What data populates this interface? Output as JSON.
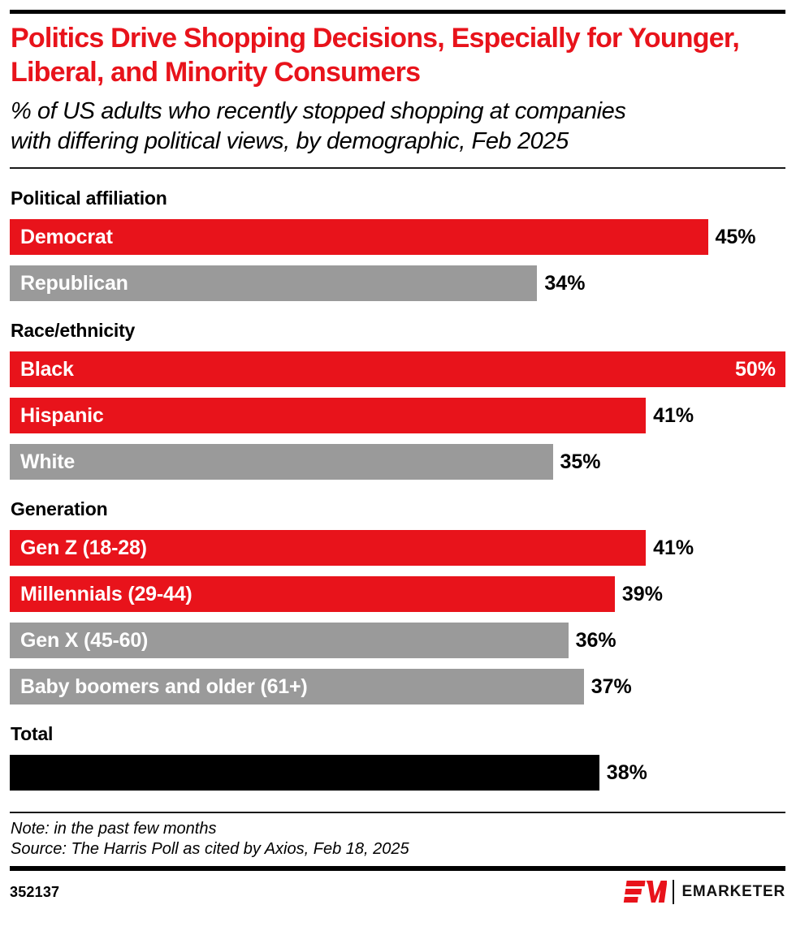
{
  "header": {
    "title": "Politics Drive Shopping Decisions, Especially for Younger, Liberal, and Minority Consumers",
    "subtitle": "% of US adults who recently stopped shopping at companies with differing political views, by demographic, Feb 2025"
  },
  "chart_data": {
    "type": "bar",
    "orientation": "horizontal",
    "unit": "%",
    "xlim": [
      0,
      50
    ],
    "value_labels": "end-of-bar",
    "grid": false,
    "legend": false,
    "groups": [
      {
        "label": "Political affiliation",
        "bars": [
          {
            "label": "Democrat",
            "value": 45,
            "color": "#E8131B"
          },
          {
            "label": "Republican",
            "value": 34,
            "color": "#9A9A9A"
          }
        ]
      },
      {
        "label": "Race/ethnicity",
        "bars": [
          {
            "label": "Black",
            "value": 50,
            "color": "#E8131B"
          },
          {
            "label": "Hispanic",
            "value": 41,
            "color": "#E8131B"
          },
          {
            "label": "White",
            "value": 35,
            "color": "#9A9A9A"
          }
        ]
      },
      {
        "label": "Generation",
        "bars": [
          {
            "label": "Gen Z (18-28)",
            "value": 41,
            "color": "#E8131B"
          },
          {
            "label": "Millennials (29-44)",
            "value": 39,
            "color": "#E8131B"
          },
          {
            "label": "Gen X (45-60)",
            "value": 36,
            "color": "#9A9A9A"
          },
          {
            "label": "Baby boomers and older (61+)",
            "value": 37,
            "color": "#9A9A9A"
          }
        ]
      },
      {
        "label": "Total",
        "bars": [
          {
            "label": "",
            "value": 38,
            "color": "#000000"
          }
        ]
      }
    ]
  },
  "footer": {
    "note": "Note: in the past few months",
    "source": "Source: The Harris Poll as cited by Axios, Feb 18, 2025",
    "chart_id": "352137",
    "brand": "EMARKETER"
  },
  "icons": {
    "em_monogram": "EM brand mark (red striped E + M)"
  },
  "colors": {
    "accent_red": "#E8131B",
    "bar_gray": "#9A9A9A",
    "bar_black": "#000000",
    "rule_black": "#000000"
  }
}
